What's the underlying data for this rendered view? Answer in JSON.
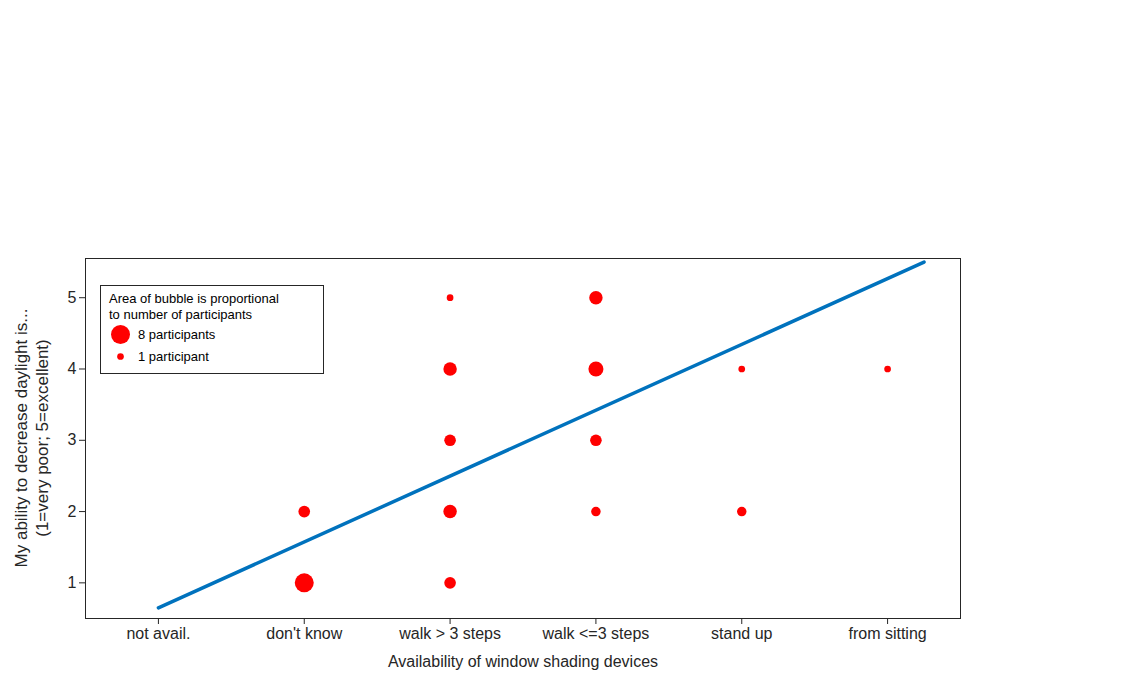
{
  "chart_data": {
    "type": "scatter",
    "x_label": "Availability of window shading devices",
    "y_label": [
      "My ability to decrease daylight is...",
      "(1=very poor; 5=excellent)"
    ],
    "xlim": [
      -0.5,
      5.5
    ],
    "xticks": [
      {
        "value": 0,
        "label": "not avail."
      },
      {
        "value": 1,
        "label": "don't know"
      },
      {
        "value": 2,
        "label": "walk > 3 steps"
      },
      {
        "value": 3,
        "label": "walk <=3 steps"
      },
      {
        "value": 4,
        "label": "stand up"
      },
      {
        "value": 5,
        "label": "from sitting"
      }
    ],
    "ylim": [
      0.5,
      5.55
    ],
    "yticks": [
      1,
      2,
      3,
      4,
      5
    ],
    "grid": false,
    "legend": "upper left",
    "legend_title": [
      "Area of bubble is proportional",
      "to number of participants"
    ],
    "legend_sizes": [
      {
        "size": 8,
        "label": "8 participants"
      },
      {
        "size": 1,
        "label": "1 participant"
      }
    ],
    "color": "#ff0000",
    "marker": "circle",
    "x": [
      1,
      1,
      2,
      2,
      2,
      2,
      2,
      3,
      3,
      3,
      3,
      4,
      4,
      5
    ],
    "values": [
      1,
      2,
      5,
      4,
      3,
      2,
      1,
      5,
      4,
      3,
      2,
      4,
      2,
      4
    ],
    "sizes": [
      8,
      3,
      1,
      4,
      3,
      4,
      3,
      4,
      5,
      3,
      2,
      1,
      2,
      1
    ],
    "trend_line": {
      "x": [
        0,
        5.25
      ],
      "y": [
        0.65,
        5.5
      ],
      "color": "#0072bd",
      "line_style": "solid"
    }
  }
}
